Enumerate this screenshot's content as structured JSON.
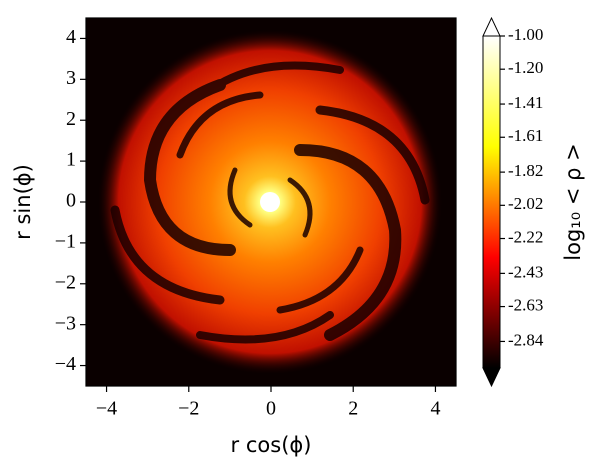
{
  "chart_data": {
    "type": "image",
    "xlabel": "r cos(ϕ)",
    "ylabel": "r sin(ϕ)",
    "xlim": [
      -4.5,
      4.5
    ],
    "ylim": [
      -4.5,
      4.5
    ],
    "xticks": [
      {
        "value": -4,
        "label": "−4"
      },
      {
        "value": -2,
        "label": "−2"
      },
      0,
      2,
      4
    ],
    "yticks": [
      {
        "value": -4,
        "label": "−4"
      },
      {
        "value": -3,
        "label": "−3"
      },
      {
        "value": -2,
        "label": "−2"
      },
      {
        "value": -1,
        "label": "−1"
      },
      0,
      1,
      2,
      3,
      4
    ],
    "colormap": "afmhot",
    "colorbar": {
      "label": "log₁₀ < ρ >",
      "clim": [
        -3,
        -1
      ],
      "extend": "both",
      "ticks": [
        {
          "value": -1,
          "label": "-1.00"
        },
        {
          "value": -1.2,
          "label": "-1.20"
        },
        -1.41,
        -1.61,
        -1.82,
        -2.02,
        -2.22,
        -2.43,
        -2.63,
        -2.84
      ]
    }
  }
}
